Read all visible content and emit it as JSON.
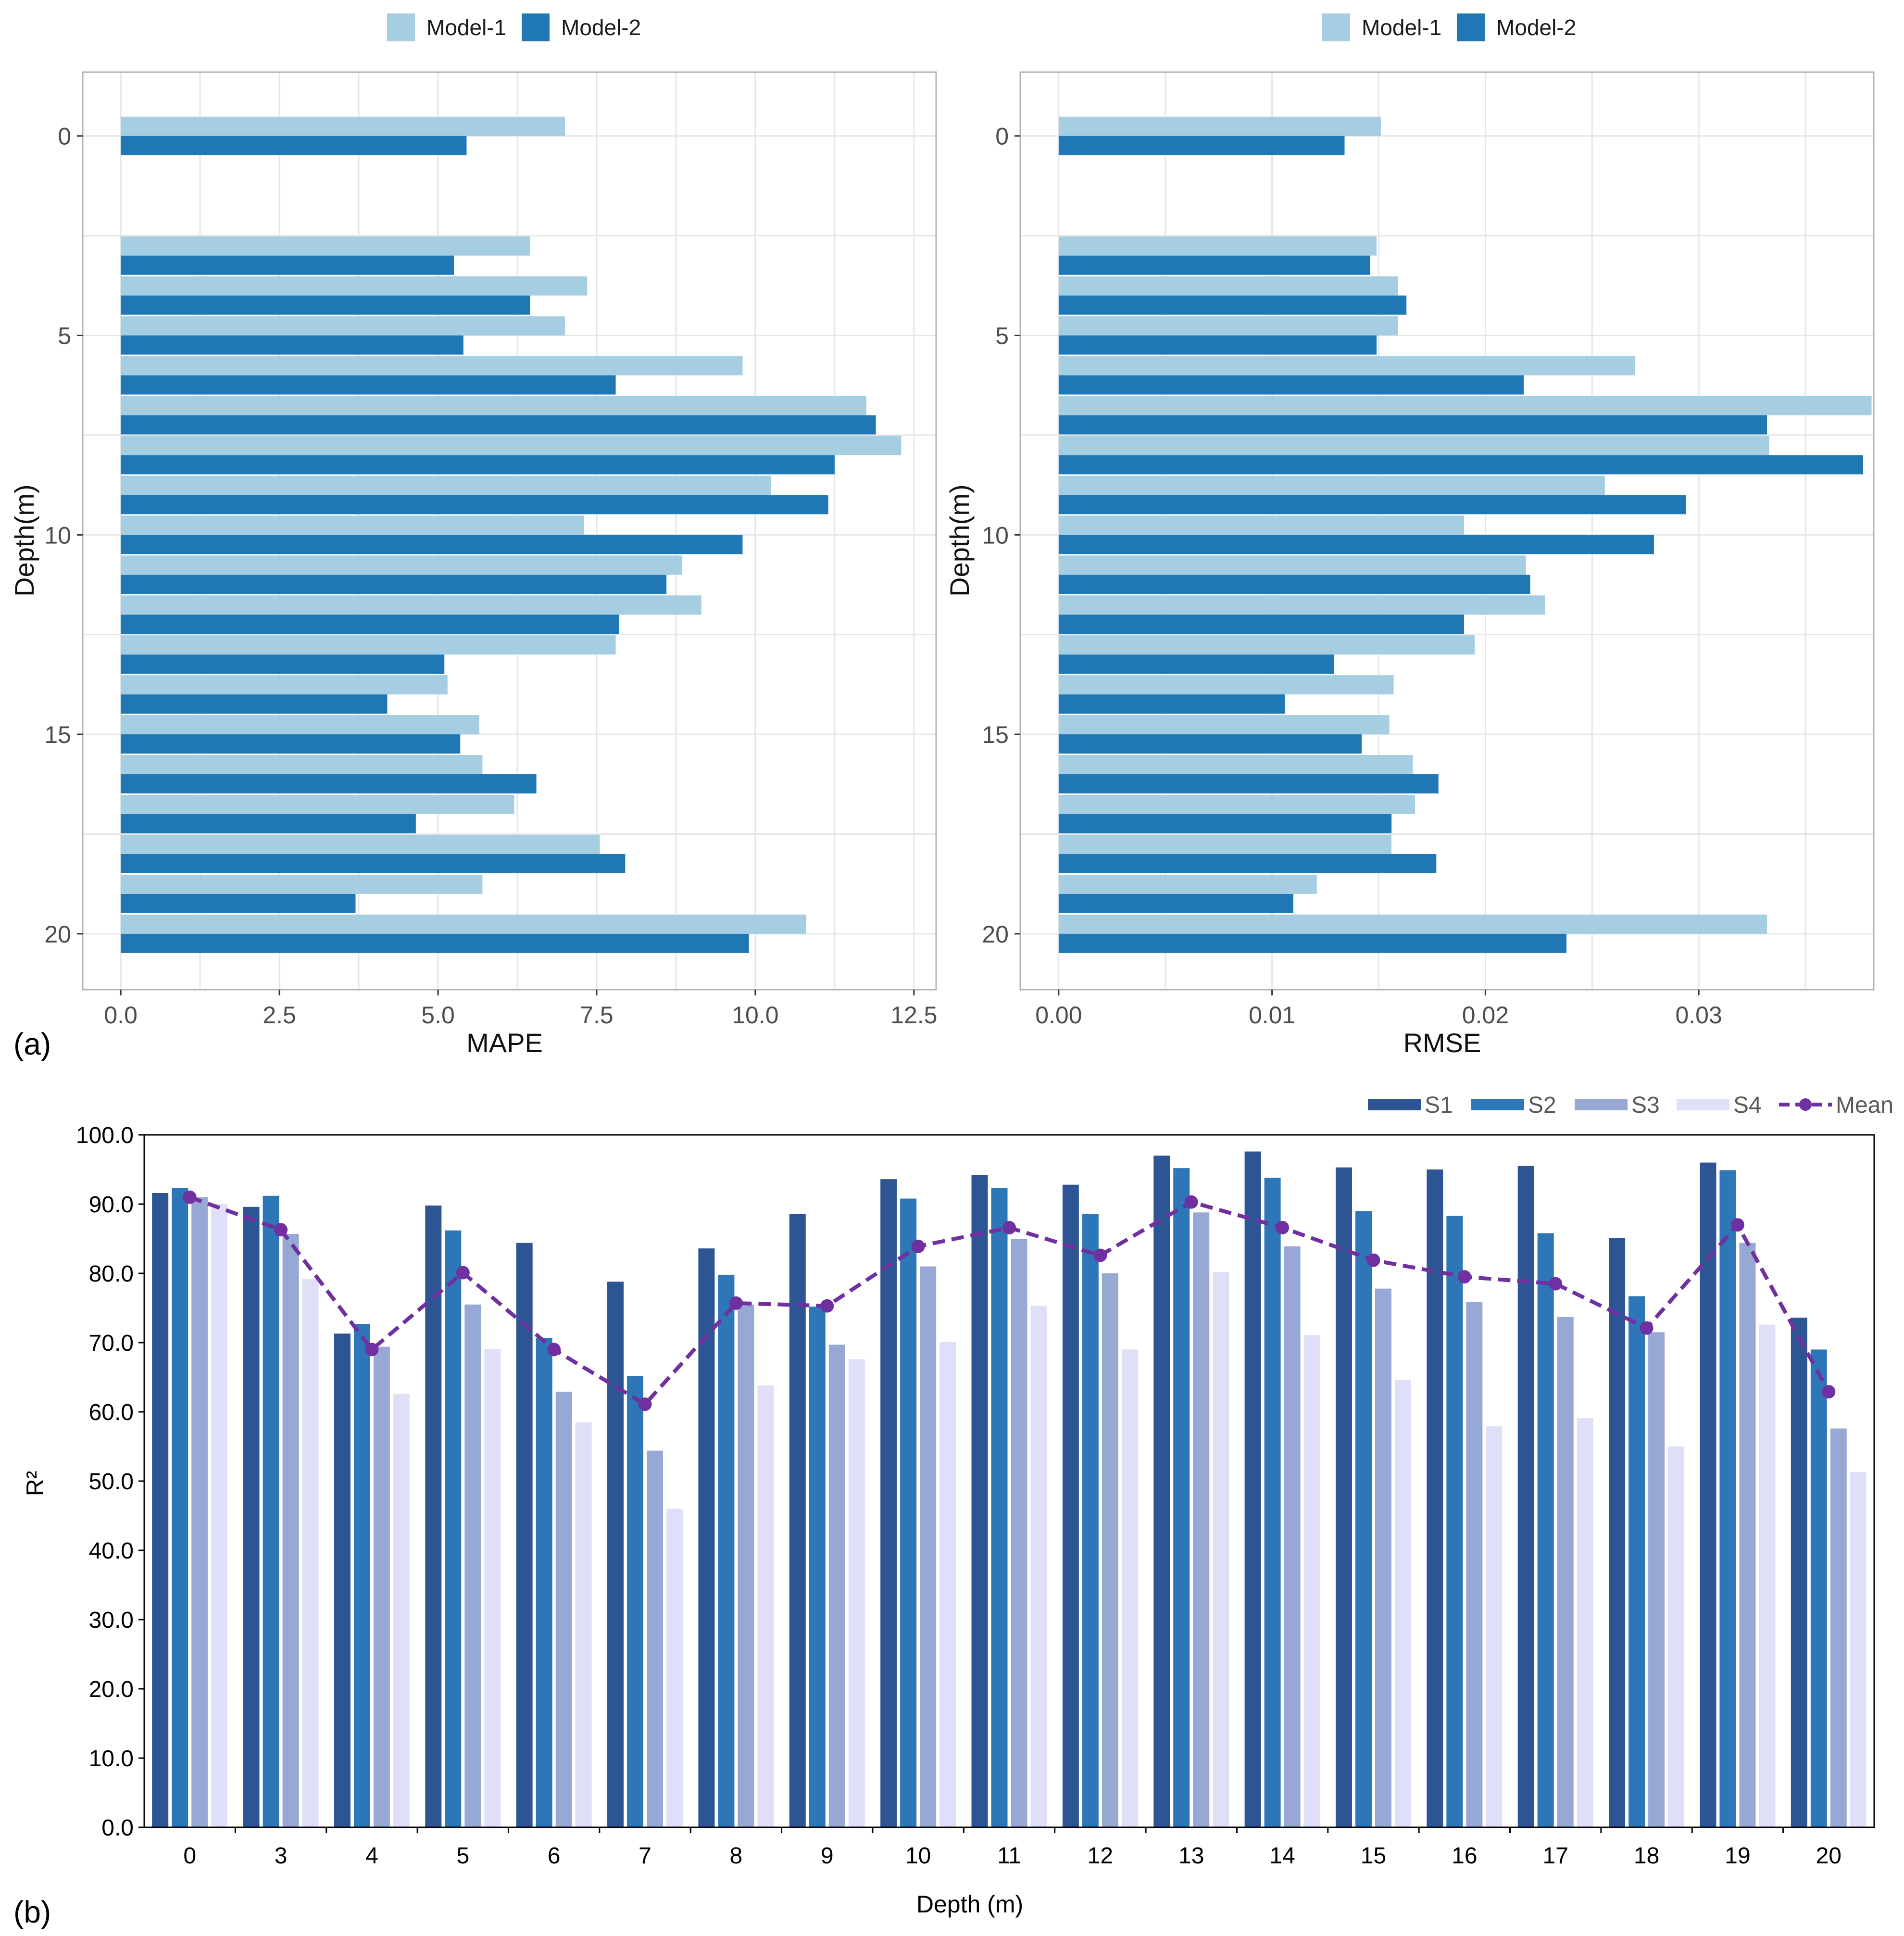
{
  "colors": {
    "model1": "#a6cee3",
    "model2": "#1f78b4",
    "S1": "#2e5593",
    "S2": "#2d76b8",
    "S3": "#98a8d4",
    "S4": "#dfe0f8",
    "mean": "#7030a0",
    "grid": "#e6e6e6",
    "panel_border": "#b3b3b3"
  },
  "chart_data": [
    {
      "id": "mape",
      "type": "bar",
      "orientation": "horizontal",
      "panel_label": "(a)",
      "legend": [
        "Model-1",
        "Model-2"
      ],
      "legend_position": "top",
      "xlabel": "MAPE",
      "ylabel": "Depth(m)",
      "xlim": [
        -0.6,
        12.85
      ],
      "ylim": [
        -1.6,
        21.4
      ],
      "xticks": [
        "0.0",
        "2.5",
        "5.0",
        "7.5",
        "10.0",
        "12.5"
      ],
      "xtick_values": [
        0,
        2.5,
        5,
        7.5,
        10,
        12.5
      ],
      "yticks": [
        "0",
        "5",
        "10",
        "15",
        "20"
      ],
      "ytick_values": [
        0,
        5,
        10,
        15,
        20
      ],
      "depths": [
        0,
        3,
        4,
        5,
        6,
        7,
        8,
        9,
        10,
        11,
        12,
        13,
        14,
        15,
        16,
        17,
        18,
        19,
        20
      ],
      "series": [
        {
          "name": "Model-1",
          "values": [
            7.0,
            6.45,
            7.35,
            7.0,
            9.8,
            11.75,
            12.3,
            10.25,
            7.3,
            8.85,
            9.15,
            7.8,
            5.15,
            5.65,
            5.7,
            6.2,
            7.55,
            5.7,
            10.8
          ]
        },
        {
          "name": "Model-2",
          "values": [
            5.45,
            5.25,
            6.45,
            5.4,
            7.8,
            11.9,
            11.25,
            11.15,
            9.8,
            8.6,
            7.85,
            5.1,
            4.2,
            5.35,
            6.55,
            4.65,
            7.95,
            3.7,
            9.9
          ]
        }
      ]
    },
    {
      "id": "rmse",
      "type": "bar",
      "orientation": "horizontal",
      "legend": [
        "Model-1",
        "Model-2"
      ],
      "legend_position": "top",
      "xlabel": "RMSE",
      "ylabel": "Depth(m)",
      "xlim": [
        -0.0018,
        0.0382
      ],
      "ylim": [
        -1.6,
        21.4
      ],
      "xticks": [
        "0.00",
        "0.01",
        "0.02",
        "0.03"
      ],
      "xtick_values": [
        0,
        0.01,
        0.02,
        0.03
      ],
      "yticks": [
        "0",
        "5",
        "10",
        "15",
        "20"
      ],
      "ytick_values": [
        0,
        5,
        10,
        15,
        20
      ],
      "depths": [
        0,
        3,
        4,
        5,
        6,
        7,
        8,
        9,
        10,
        11,
        12,
        13,
        14,
        15,
        16,
        17,
        18,
        19,
        20
      ],
      "series": [
        {
          "name": "Model-1",
          "values": [
            0.0151,
            0.0149,
            0.0159,
            0.0159,
            0.027,
            0.0381,
            0.0333,
            0.0256,
            0.019,
            0.0219,
            0.0228,
            0.0195,
            0.0157,
            0.0155,
            0.0166,
            0.0167,
            0.0156,
            0.0121,
            0.0332
          ]
        },
        {
          "name": "Model-2",
          "values": [
            0.0134,
            0.0146,
            0.0163,
            0.0149,
            0.0218,
            0.0332,
            0.0377,
            0.0294,
            0.0279,
            0.0221,
            0.019,
            0.0129,
            0.0106,
            0.0142,
            0.0178,
            0.0156,
            0.0177,
            0.011,
            0.0238
          ]
        }
      ]
    },
    {
      "id": "r2",
      "type": "bar",
      "orientation": "vertical",
      "panel_label": "(b)",
      "legend": [
        "S1",
        "S2",
        "S3",
        "S4",
        "Mean"
      ],
      "legend_position": "top-right",
      "xlabel": "Depth (m)",
      "ylabel": "R²",
      "ylim": [
        0,
        100
      ],
      "yticks": [
        "0.0",
        "10.0",
        "20.0",
        "30.0",
        "40.0",
        "50.0",
        "60.0",
        "70.0",
        "80.0",
        "90.0",
        "100.0"
      ],
      "ytick_values": [
        0,
        10,
        20,
        30,
        40,
        50,
        60,
        70,
        80,
        90,
        100
      ],
      "categories": [
        "0",
        "3",
        "4",
        "5",
        "6",
        "7",
        "8",
        "9",
        "10",
        "11",
        "12",
        "13",
        "14",
        "15",
        "16",
        "17",
        "18",
        "19",
        "20"
      ],
      "series": [
        {
          "name": "S1",
          "values": [
            91.6,
            89.6,
            71.3,
            89.8,
            84.4,
            78.8,
            83.6,
            88.6,
            93.6,
            94.2,
            92.8,
            97.0,
            97.6,
            95.3,
            95.0,
            95.5,
            85.1,
            96.0,
            73.6
          ]
        },
        {
          "name": "S2",
          "values": [
            92.3,
            91.2,
            72.7,
            86.2,
            70.7,
            65.2,
            79.8,
            75.2,
            90.8,
            92.3,
            88.6,
            95.2,
            93.8,
            89.0,
            88.3,
            85.8,
            76.7,
            94.9,
            69.0
          ]
        },
        {
          "name": "S3",
          "values": [
            91.0,
            85.7,
            69.4,
            75.5,
            62.9,
            54.4,
            75.5,
            69.7,
            81.0,
            85.0,
            80.0,
            88.8,
            83.9,
            77.8,
            75.9,
            73.7,
            71.5,
            84.4,
            57.6
          ]
        },
        {
          "name": "S4",
          "values": [
            90.0,
            79.2,
            62.6,
            69.1,
            58.5,
            46.0,
            63.8,
            67.6,
            70.1,
            75.3,
            69.0,
            80.2,
            71.1,
            64.6,
            57.9,
            59.1,
            55.0,
            72.6,
            51.3
          ]
        },
        {
          "name": "Mean",
          "type": "line",
          "values": [
            91.0,
            86.3,
            69.0,
            80.1,
            69.0,
            61.1,
            75.7,
            75.3,
            83.9,
            86.6,
            82.6,
            90.3,
            86.6,
            81.9,
            79.5,
            78.5,
            72.1,
            87.0,
            62.9
          ]
        }
      ]
    }
  ]
}
